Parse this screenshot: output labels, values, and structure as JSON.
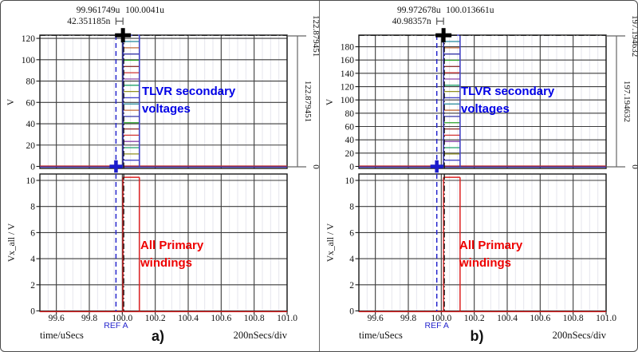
{
  "window": {
    "background": "#ffffff",
    "border_color": "#4a4a4a"
  },
  "style_colors": {
    "grid_major": "#3c3c3c",
    "grid_minor": "#e6e6ee",
    "frame": "#1a1a1a",
    "ref_cursor_blue": "#2525cd",
    "main_cursor_black": "#111111",
    "primary_trace_red": "#dd2222",
    "secondary_trace_colors": [
      "#4646c8",
      "#8f8f22",
      "#1da06a",
      "#8a44a8",
      "#d23434",
      "#8f3434",
      "#2aa22a",
      "#3434a8",
      "#c06a3a",
      "#20889a"
    ],
    "annotation_blue": "#0000e6",
    "annotation_red": "#ee0000"
  },
  "panels": [
    {
      "caption": "a)",
      "readouts": {
        "ref_x": "99.961749u",
        "main_x": "100.0041u",
        "delta_x": "42.351185n"
      },
      "right_scale": {
        "top_label": "122.879451",
        "delta_label": "122.879451",
        "bottom_label": "0"
      },
      "top_plot": {
        "ylabel": "V",
        "y_tick_labels": [
          "0",
          "20",
          "40",
          "60",
          "80",
          "100",
          "120"
        ],
        "annotation_line1": "TLVR secondary",
        "annotation_line2": "voltages"
      },
      "bottom_plot": {
        "ylabel": "Vx_all / V",
        "y_tick_labels": [
          "0",
          "2",
          "4",
          "6",
          "8",
          "10"
        ],
        "annotation_line1": "All Primary",
        "annotation_line2": "windings"
      },
      "x_tick_labels": [
        "99.6",
        "99.8",
        "100.0",
        "100.2",
        "100.4",
        "100.6",
        "100.8",
        "101.0"
      ],
      "ref_cursor_label": "REF A",
      "xaxis_label": "time/uSecs",
      "xdiv_label": "200nSecs/div"
    },
    {
      "caption": "b)",
      "readouts": {
        "ref_x": "99.972678u",
        "main_x": "100.013661u",
        "delta_x": "40.98357n"
      },
      "right_scale": {
        "top_label": "197.194632",
        "delta_label": "197.194632",
        "bottom_label": "0"
      },
      "top_plot": {
        "ylabel": "V",
        "y_tick_labels": [
          "0",
          "20",
          "40",
          "60",
          "80",
          "100",
          "120",
          "140",
          "160",
          "180"
        ],
        "annotation_line1": "TLVR secondary",
        "annotation_line2": "voltages"
      },
      "bottom_plot": {
        "ylabel": "Vx_all / V",
        "y_tick_labels": [
          "0",
          "2",
          "4",
          "6",
          "8",
          "10"
        ],
        "annotation_line1": "All Primary",
        "annotation_line2": "windings"
      },
      "x_tick_labels": [
        "99.6",
        "99.8",
        "100.0",
        "100.2",
        "100.4",
        "100.6",
        "100.8",
        "101.0"
      ],
      "ref_cursor_label": "REF A",
      "xaxis_label": "time/uSecs",
      "xdiv_label": "200nSecs/div"
    }
  ],
  "chart_data": [
    {
      "type": "line",
      "panel": "a",
      "title_annotations": [
        "TLVR secondary voltages",
        "All Primary windings"
      ],
      "x_units": "uSecs",
      "x_range": [
        99.5,
        101.0
      ],
      "x_ticks": [
        99.6,
        99.8,
        100.0,
        100.2,
        100.4,
        100.6,
        100.8,
        101.0
      ],
      "x_div": "200nSecs/div",
      "top_plot": {
        "ylabel": "V",
        "y_ticks": [
          0,
          20,
          40,
          60,
          80,
          100,
          120
        ],
        "ylim": [
          0,
          123.5
        ],
        "pulse_start": 100.0041,
        "pulse_end": 100.104,
        "baseline": 0,
        "peak": 122.879451,
        "levels": [
          5.85,
          11.7,
          17.55,
          23.41,
          29.26,
          35.11,
          40.96,
          46.81,
          52.66,
          58.51,
          64.37,
          70.22,
          76.07,
          81.92,
          87.77,
          93.62,
          99.47,
          105.33,
          111.18,
          117.03,
          122.88
        ]
      },
      "bottom_plot": {
        "ylabel": "Vx_all / V",
        "y_ticks": [
          0,
          2,
          4,
          6,
          8,
          10
        ],
        "ylim": [
          0,
          10.5
        ],
        "pulse_start": 100.0041,
        "pulse_end": 100.104,
        "amplitude": 10.24,
        "baseline": 0
      },
      "cursors": {
        "ref_x": 99.961749,
        "main_x": 100.0041,
        "ref_y": 0,
        "main_y": 122.879451,
        "delta_x_ns": 42.351185,
        "delta_y": 122.879451
      }
    },
    {
      "type": "line",
      "panel": "b",
      "title_annotations": [
        "TLVR secondary voltages",
        "All Primary windings"
      ],
      "x_units": "uSecs",
      "x_range": [
        99.5,
        101.0
      ],
      "x_ticks": [
        99.6,
        99.8,
        100.0,
        100.2,
        100.4,
        100.6,
        100.8,
        101.0
      ],
      "x_div": "200nSecs/div",
      "top_plot": {
        "ylabel": "V",
        "y_ticks": [
          0,
          20,
          40,
          60,
          80,
          100,
          120,
          140,
          160,
          180
        ],
        "ylim": [
          0,
          198.5
        ],
        "pulse_start": 100.013661,
        "pulse_end": 100.114,
        "baseline": 0,
        "peak": 197.194632,
        "levels": [
          9.39,
          18.78,
          28.17,
          37.56,
          46.95,
          56.34,
          65.73,
          75.12,
          84.51,
          93.9,
          103.29,
          112.68,
          122.07,
          131.46,
          140.85,
          150.24,
          159.63,
          169.02,
          178.41,
          187.8,
          197.19
        ]
      },
      "bottom_plot": {
        "ylabel": "Vx_all / V",
        "y_ticks": [
          0,
          2,
          4,
          6,
          8,
          10
        ],
        "ylim": [
          0,
          10.5
        ],
        "pulse_start": 100.013661,
        "pulse_end": 100.114,
        "amplitude": 10.24,
        "baseline": 0
      },
      "cursors": {
        "ref_x": 99.972678,
        "main_x": 100.013661,
        "ref_y": 0,
        "main_y": 197.194632,
        "delta_x_ns": 40.98357,
        "delta_y": 197.194632
      }
    }
  ]
}
